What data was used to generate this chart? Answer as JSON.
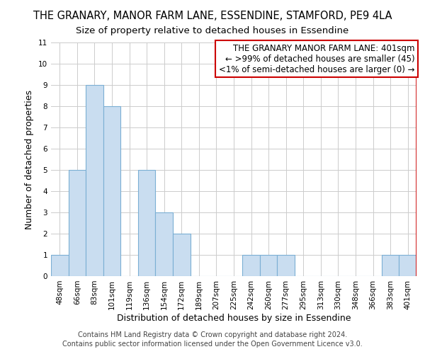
{
  "title": "THE GRANARY, MANOR FARM LANE, ESSENDINE, STAMFORD, PE9 4LA",
  "subtitle": "Size of property relative to detached houses in Essendine",
  "xlabel": "Distribution of detached houses by size in Essendine",
  "ylabel": "Number of detached properties",
  "categories": [
    "48sqm",
    "66sqm",
    "83sqm",
    "101sqm",
    "119sqm",
    "136sqm",
    "154sqm",
    "172sqm",
    "189sqm",
    "207sqm",
    "225sqm",
    "242sqm",
    "260sqm",
    "277sqm",
    "295sqm",
    "313sqm",
    "330sqm",
    "348sqm",
    "366sqm",
    "383sqm",
    "401sqm"
  ],
  "values": [
    1,
    5,
    9,
    8,
    0,
    5,
    3,
    2,
    0,
    0,
    0,
    1,
    1,
    1,
    0,
    0,
    0,
    0,
    0,
    1,
    1
  ],
  "bar_color": "#c9ddf0",
  "bar_edge_color": "#7bafd4",
  "highlight_bar_index": 20,
  "highlight_bar_edge_color": "#cc0000",
  "legend_box_edge_color": "#cc0000",
  "legend_lines": [
    "THE GRANARY MANOR FARM LANE: 401sqm",
    "← >99% of detached houses are smaller (45)",
    "<1% of semi-detached houses are larger (0) →"
  ],
  "ylim": [
    0,
    11
  ],
  "yticks": [
    0,
    1,
    2,
    3,
    4,
    5,
    6,
    7,
    8,
    9,
    10,
    11
  ],
  "footer1": "Contains HM Land Registry data © Crown copyright and database right 2024.",
  "footer2": "Contains public sector information licensed under the Open Government Licence v3.0.",
  "title_fontsize": 10.5,
  "subtitle_fontsize": 9.5,
  "axis_label_fontsize": 9,
  "tick_fontsize": 7.5,
  "footer_fontsize": 7,
  "legend_fontsize": 8.5
}
